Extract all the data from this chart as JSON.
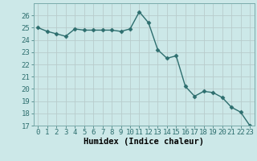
{
  "x": [
    0,
    1,
    2,
    3,
    4,
    5,
    6,
    7,
    8,
    9,
    10,
    11,
    12,
    13,
    14,
    15,
    16,
    17,
    18,
    19,
    20,
    21,
    22,
    23
  ],
  "y": [
    25.0,
    24.7,
    24.5,
    24.3,
    24.9,
    24.8,
    24.8,
    24.8,
    24.8,
    24.7,
    24.9,
    26.3,
    25.4,
    23.2,
    22.5,
    22.7,
    20.2,
    19.4,
    19.8,
    19.7,
    19.3,
    18.5,
    18.1,
    17.0
  ],
  "line_color": "#2d6e6e",
  "marker": "D",
  "marker_size": 2.5,
  "bg_color": "#cce8e8",
  "grid_color": "#b8cccc",
  "xlabel": "Humidex (Indice chaleur)",
  "ylim": [
    17,
    27
  ],
  "xlim": [
    -0.5,
    23.5
  ],
  "yticks": [
    17,
    18,
    19,
    20,
    21,
    22,
    23,
    24,
    25,
    26
  ],
  "xticks": [
    0,
    1,
    2,
    3,
    4,
    5,
    6,
    7,
    8,
    9,
    10,
    11,
    12,
    13,
    14,
    15,
    16,
    17,
    18,
    19,
    20,
    21,
    22,
    23
  ],
  "xlabel_fontsize": 7.5,
  "tick_fontsize": 6.5,
  "line_width": 1.0
}
